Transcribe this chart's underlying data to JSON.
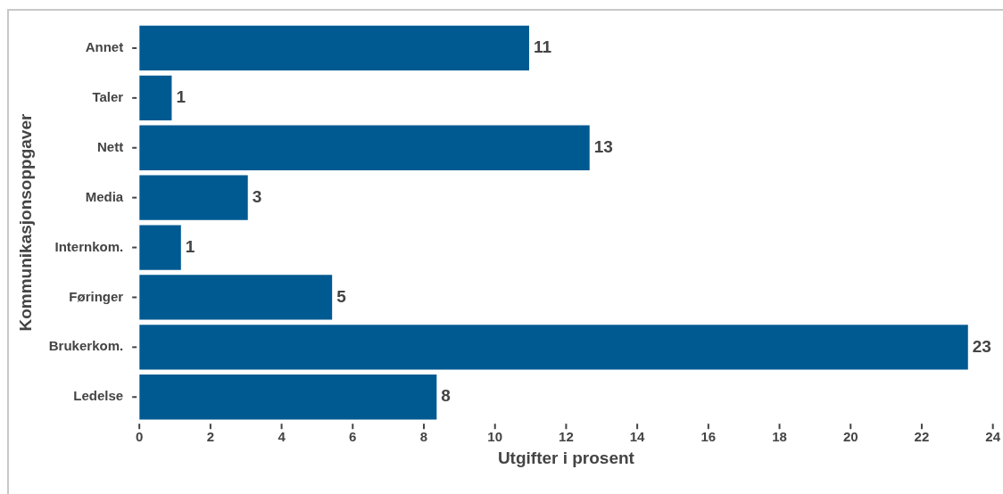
{
  "chart_data": {
    "type": "bar",
    "orientation": "horizontal",
    "categories": [
      "Annet",
      "Taler",
      "Nett",
      "Media",
      "Internkom.",
      "Føringer",
      "Brukerkom.",
      "Ledelse"
    ],
    "values": [
      10.96,
      0.91,
      12.66,
      3.05,
      1.17,
      5.42,
      23.3,
      8.36
    ],
    "value_labels": [
      "11",
      "1",
      "13",
      "3",
      "1",
      "5",
      "23",
      "8"
    ],
    "color": "#005a92",
    "xlabel": "Utgifter i prosent",
    "ylabel": "Kommunikasjonsoppgaver",
    "xlim": [
      0,
      24
    ],
    "xticks": [
      0,
      2,
      4,
      6,
      8,
      10,
      12,
      14,
      16,
      18,
      20,
      22,
      24
    ],
    "grid": false,
    "legend": false
  }
}
